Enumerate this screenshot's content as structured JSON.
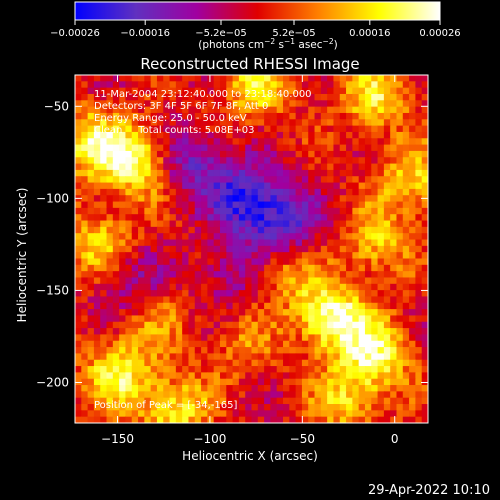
{
  "chart_data": {
    "type": "heatmap",
    "title": "Reconstructed RHESSI Image",
    "xlabel": "Heliocentric X (arcsec)",
    "ylabel": "Heliocentric Y (arcsec)",
    "xlim": [
      -173,
      18
    ],
    "ylim": [
      -222,
      -33
    ],
    "x_ticks": [
      -150,
      -100,
      -50,
      0
    ],
    "y_ticks": [
      -50,
      -100,
      -150,
      -200
    ],
    "x_tick_labels": [
      "−150",
      "−100",
      "−50",
      "0"
    ],
    "y_tick_labels": [
      "−50",
      "−100",
      "−150",
      "−200"
    ],
    "colorbar": {
      "range": [
        -0.00026,
        0.00026
      ],
      "ticks": [
        -0.00026,
        -0.00016,
        -5.2e-05,
        5.2e-05,
        0.00016,
        0.00026
      ],
      "tick_labels": [
        "−0.00026",
        "−0.00016",
        "−5.2e−05",
        "5.2e−05",
        "0.00016",
        "0.00026"
      ],
      "label": "(photons cm",
      "label_parts": [
        "(photons cm",
        "−2",
        " s",
        "−1",
        " asec",
        "−2",
        ")"
      ],
      "colormap": [
        "#0000ff",
        "#6030c0",
        "#a000a0",
        "#e00000",
        "#ff8000",
        "#ffff00",
        "#ffffff"
      ]
    },
    "annotations": [
      "11-Mar-2004 23:12:40.000 to 23:18:40.000",
      "Detectors: 3F 4F 5F 6F 7F 8F, Att 0",
      "Energy Range: 25.0 - 50.0 keV",
      "Clean     Total counts: 5.08E+03"
    ],
    "peak_label": "Position of Peak = [-34,-165]",
    "peak": [
      -34,
      -165
    ],
    "grid": false,
    "sources": [
      {
        "x": -34,
        "y": -165,
        "amp": 0.00026
      },
      {
        "x": -10,
        "y": -185,
        "amp": 0.0002
      },
      {
        "x": -140,
        "y": -80,
        "amp": 0.00022
      },
      {
        "x": -165,
        "y": -70,
        "amp": 0.00018
      },
      {
        "x": -160,
        "y": -125,
        "amp": 0.00016
      },
      {
        "x": -150,
        "y": -195,
        "amp": 0.00019
      },
      {
        "x": -120,
        "y": -215,
        "amp": 0.00018
      },
      {
        "x": -75,
        "y": -40,
        "amp": 0.00016
      },
      {
        "x": -10,
        "y": -45,
        "amp": 0.00017
      },
      {
        "x": 10,
        "y": -90,
        "amp": 0.00016
      },
      {
        "x": -10,
        "y": -125,
        "amp": 0.00014
      },
      {
        "x": -60,
        "y": -140,
        "amp": 0.00012
      },
      {
        "x": -25,
        "y": -210,
        "amp": 0.00015
      },
      {
        "x": -85,
        "y": -180,
        "amp": 8e-05
      },
      {
        "x": -130,
        "y": -165,
        "amp": 9e-05
      },
      {
        "x": -80,
        "y": -100,
        "amp": -0.00022
      },
      {
        "x": -110,
        "y": -80,
        "amp": -0.00015
      },
      {
        "x": -60,
        "y": -115,
        "amp": -0.00018
      },
      {
        "x": -145,
        "y": -145,
        "amp": -0.00012
      },
      {
        "x": -90,
        "y": -140,
        "amp": -0.0001
      }
    ]
  },
  "footer": {
    "timestamp": "29-Apr-2022 10:10"
  }
}
